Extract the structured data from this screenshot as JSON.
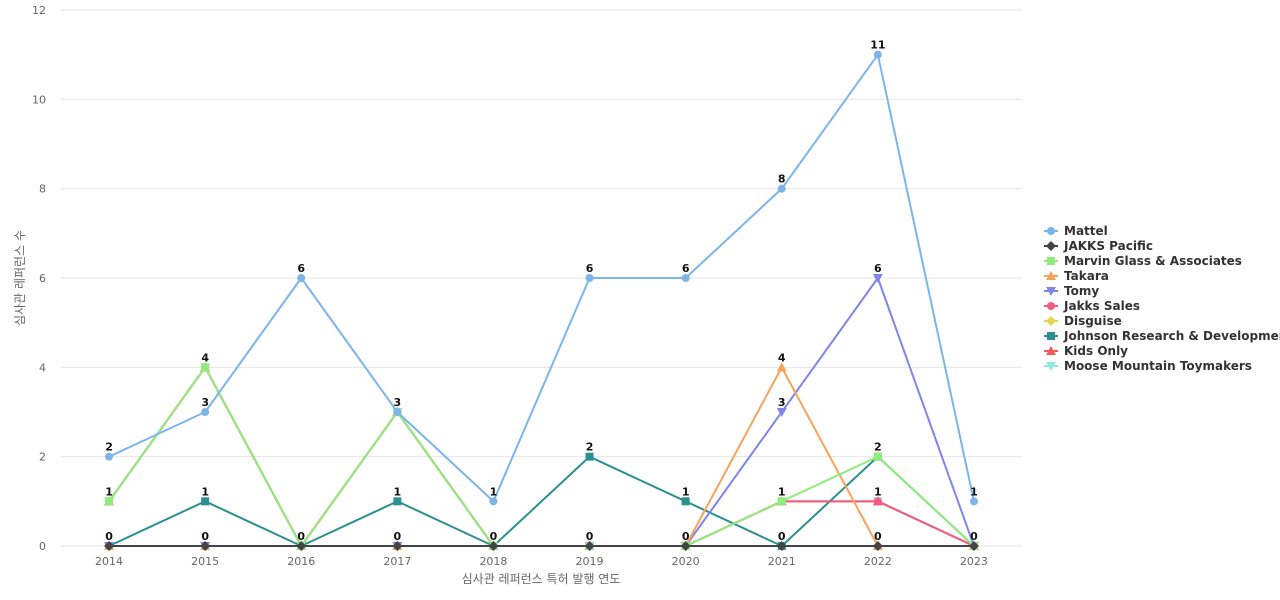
{
  "chart_data": {
    "type": "line",
    "xlabel": "심사관 레퍼런스 특허 발행 연도",
    "ylabel": "심사관 레퍼런스 수",
    "ylim": [
      0,
      12
    ],
    "yticks": [
      0,
      2,
      4,
      6,
      8,
      10,
      12
    ],
    "grid": true,
    "legend_position": "right",
    "categories": [
      "2014",
      "2015",
      "2016",
      "2017",
      "2018",
      "2019",
      "2020",
      "2021",
      "2022",
      "2023"
    ],
    "series": [
      {
        "name": "Mattel",
        "color": "#7cb5ec",
        "marker": "circle",
        "values": [
          2,
          3,
          6,
          3,
          1,
          6,
          6,
          8,
          11,
          1
        ],
        "labeled": true
      },
      {
        "name": "JAKKS Pacific",
        "color": "#434348",
        "marker": "diamond",
        "values": [
          0,
          0,
          0,
          0,
          0,
          0,
          0,
          0,
          0,
          0
        ],
        "labeled": false
      },
      {
        "name": "Marvin Glass & Associates",
        "color": "#90ed7d",
        "marker": "square",
        "values": [
          1,
          4,
          0,
          3,
          0,
          0,
          0,
          1,
          2,
          0
        ],
        "labeled": false
      },
      {
        "name": "Takara",
        "color": "#f7a35c",
        "marker": "triangle",
        "values": [
          0,
          0,
          0,
          0,
          0,
          0,
          0,
          4,
          0,
          0
        ],
        "labeled": false
      },
      {
        "name": "Tomy",
        "color": "#8085e9",
        "marker": "triangle-down",
        "values": [
          0,
          0,
          0,
          0,
          0,
          0,
          0,
          3,
          6,
          0
        ],
        "labeled": false
      },
      {
        "name": "Jakks Sales",
        "color": "#f15c80",
        "marker": "circle",
        "values": [
          1,
          4,
          0,
          3,
          0,
          0,
          0,
          1,
          1,
          0
        ],
        "labeled": false
      },
      {
        "name": "Disguise",
        "color": "#e4d354",
        "marker": "diamond",
        "values": [
          0,
          0,
          0,
          0,
          0,
          0,
          0,
          0,
          0,
          0
        ],
        "labeled": false
      },
      {
        "name": "Johnson Research & Development",
        "color": "#2b908f",
        "marker": "square",
        "values": [
          0,
          1,
          0,
          1,
          0,
          2,
          1,
          0,
          2,
          0
        ],
        "labeled": false
      },
      {
        "name": "Kids Only",
        "color": "#f45b5b",
        "marker": "triangle",
        "values": [
          1,
          4,
          0,
          3,
          0,
          0,
          0,
          1,
          1,
          0
        ],
        "labeled": false
      },
      {
        "name": "Moose Mountain Toymakers",
        "color": "#91e8e1",
        "marker": "triangle-down",
        "values": [
          1,
          4,
          0,
          3,
          0,
          0,
          0,
          1,
          1,
          0
        ],
        "labeled": false
      }
    ],
    "data_labels": [
      [
        2,
        1,
        0
      ],
      [
        4,
        3,
        1,
        0
      ],
      [
        6,
        0
      ],
      [
        3,
        1,
        0
      ],
      [
        1,
        0
      ],
      [
        6,
        2,
        0
      ],
      [
        6,
        1,
        0
      ],
      [
        8,
        4,
        3,
        1,
        0
      ],
      [
        11,
        6,
        2,
        1,
        0
      ],
      [
        1,
        0
      ]
    ]
  }
}
